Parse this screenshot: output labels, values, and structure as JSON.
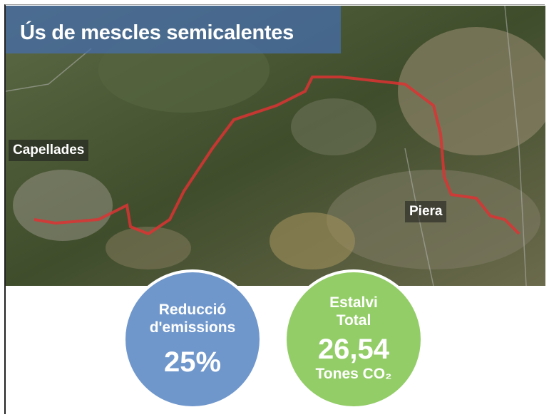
{
  "title": "Ús de mescles semicalentes",
  "map": {
    "labels": [
      "Capellades",
      "Piera"
    ]
  },
  "stats": [
    {
      "heading": "Reducció d'emissions",
      "value": "25%"
    },
    {
      "heading": "Estalvi Total",
      "value": "26,54",
      "unit": "Tones CO₂"
    }
  ]
}
